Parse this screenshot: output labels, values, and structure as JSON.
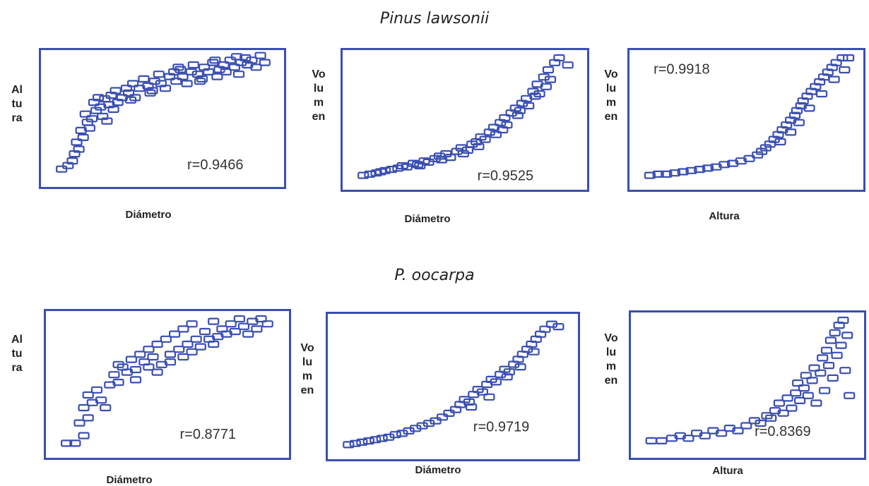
{
  "groups": [
    {
      "title": "Pinus lawsonii",
      "charts": [
        {
          "type": "scatter",
          "xlabel": "Diámetro",
          "ylabel": "Altura",
          "r_label": "r=0.9466"
        },
        {
          "type": "scatter",
          "xlabel": "Diámetro",
          "ylabel": "Volumen",
          "r_label": "r=0.9525"
        },
        {
          "type": "scatter",
          "xlabel": "Altura",
          "ylabel": "Volumen",
          "r_label": "r=0.9918"
        }
      ]
    },
    {
      "title": "P. oocarpa",
      "charts": [
        {
          "type": "scatter",
          "xlabel": "Diámetro",
          "ylabel": "Altura",
          "r_label": "r=0.8771"
        },
        {
          "type": "scatter",
          "xlabel": "Diámetro",
          "ylabel": "Volumen",
          "r_label": "r=0.9719"
        },
        {
          "type": "scatter",
          "xlabel": "Altura",
          "ylabel": "Volumen",
          "r_label": "r=0.8369"
        }
      ]
    }
  ],
  "chart_data": [
    {
      "type": "scatter",
      "title": "Pinus lawsonii",
      "xlabel": "Diámetro",
      "ylabel": "Altura",
      "annotation": "r=0.9466",
      "marker": "open-rectangle",
      "marker_color": "#3a4fb0",
      "points": [
        [
          0.02,
          0.05
        ],
        [
          0.05,
          0.08
        ],
        [
          0.07,
          0.12
        ],
        [
          0.08,
          0.18
        ],
        [
          0.1,
          0.22
        ],
        [
          0.09,
          0.28
        ],
        [
          0.12,
          0.32
        ],
        [
          0.11,
          0.38
        ],
        [
          0.14,
          0.45
        ],
        [
          0.13,
          0.52
        ],
        [
          0.16,
          0.48
        ],
        [
          0.18,
          0.55
        ],
        [
          0.17,
          0.62
        ],
        [
          0.2,
          0.58
        ],
        [
          0.22,
          0.65
        ],
        [
          0.21,
          0.5
        ],
        [
          0.24,
          0.6
        ],
        [
          0.25,
          0.68
        ],
        [
          0.27,
          0.72
        ],
        [
          0.28,
          0.62
        ],
        [
          0.3,
          0.66
        ],
        [
          0.32,
          0.74
        ],
        [
          0.33,
          0.7
        ],
        [
          0.35,
          0.78
        ],
        [
          0.36,
          0.66
        ],
        [
          0.38,
          0.74
        ],
        [
          0.4,
          0.82
        ],
        [
          0.42,
          0.76
        ],
        [
          0.43,
          0.7
        ],
        [
          0.45,
          0.8
        ],
        [
          0.47,
          0.86
        ],
        [
          0.48,
          0.78
        ],
        [
          0.5,
          0.74
        ],
        [
          0.52,
          0.84
        ],
        [
          0.54,
          0.88
        ],
        [
          0.55,
          0.8
        ],
        [
          0.57,
          0.9
        ],
        [
          0.58,
          0.84
        ],
        [
          0.6,
          0.78
        ],
        [
          0.62,
          0.88
        ],
        [
          0.63,
          0.94
        ],
        [
          0.65,
          0.86
        ],
        [
          0.67,
          0.82
        ],
        [
          0.68,
          0.92
        ],
        [
          0.7,
          0.88
        ],
        [
          0.72,
          0.96
        ],
        [
          0.74,
          0.84
        ],
        [
          0.75,
          0.9
        ],
        [
          0.77,
          0.94
        ],
        [
          0.78,
          0.88
        ],
        [
          0.8,
          0.98
        ],
        [
          0.82,
          0.92
        ],
        [
          0.84,
          0.86
        ],
        [
          0.85,
          0.96
        ],
        [
          0.87,
          1.0
        ],
        [
          0.88,
          0.94
        ],
        [
          0.9,
          0.98
        ],
        [
          0.92,
          0.92
        ],
        [
          0.94,
          1.02
        ],
        [
          0.96,
          0.96
        ],
        [
          0.23,
          0.46
        ],
        [
          0.15,
          0.4
        ],
        [
          0.19,
          0.66
        ],
        [
          0.26,
          0.56
        ],
        [
          0.34,
          0.64
        ],
        [
          0.44,
          0.72
        ],
        [
          0.56,
          0.92
        ],
        [
          0.66,
          0.8
        ],
        [
          0.73,
          0.98
        ],
        [
          0.83,
          1.01
        ]
      ]
    },
    {
      "type": "scatter",
      "title": "Pinus lawsonii",
      "xlabel": "Diámetro",
      "ylabel": "Volumen",
      "annotation": "r=0.9525",
      "marker": "open-rectangle",
      "marker_color": "#3a4fb0",
      "points": [
        [
          0.02,
          0.02
        ],
        [
          0.05,
          0.03
        ],
        [
          0.08,
          0.04
        ],
        [
          0.1,
          0.05
        ],
        [
          0.12,
          0.06
        ],
        [
          0.15,
          0.07
        ],
        [
          0.18,
          0.08
        ],
        [
          0.2,
          0.1
        ],
        [
          0.22,
          0.09
        ],
        [
          0.25,
          0.12
        ],
        [
          0.27,
          0.11
        ],
        [
          0.3,
          0.14
        ],
        [
          0.32,
          0.13
        ],
        [
          0.35,
          0.16
        ],
        [
          0.37,
          0.18
        ],
        [
          0.4,
          0.2
        ],
        [
          0.42,
          0.17
        ],
        [
          0.45,
          0.22
        ],
        [
          0.47,
          0.25
        ],
        [
          0.5,
          0.23
        ],
        [
          0.52,
          0.28
        ],
        [
          0.54,
          0.3
        ],
        [
          0.56,
          0.34
        ],
        [
          0.58,
          0.32
        ],
        [
          0.6,
          0.38
        ],
        [
          0.62,
          0.42
        ],
        [
          0.63,
          0.36
        ],
        [
          0.65,
          0.46
        ],
        [
          0.67,
          0.5
        ],
        [
          0.68,
          0.44
        ],
        [
          0.7,
          0.54
        ],
        [
          0.72,
          0.58
        ],
        [
          0.73,
          0.52
        ],
        [
          0.75,
          0.62
        ],
        [
          0.77,
          0.66
        ],
        [
          0.78,
          0.6
        ],
        [
          0.8,
          0.72
        ],
        [
          0.82,
          0.78
        ],
        [
          0.83,
          0.7
        ],
        [
          0.85,
          0.84
        ],
        [
          0.87,
          0.9
        ],
        [
          0.88,
          0.82
        ],
        [
          0.9,
          0.96
        ],
        [
          0.92,
          1.0
        ],
        [
          0.96,
          0.94
        ],
        [
          0.55,
          0.26
        ],
        [
          0.48,
          0.2
        ],
        [
          0.38,
          0.15
        ],
        [
          0.28,
          0.1
        ],
        [
          0.66,
          0.4
        ],
        [
          0.74,
          0.56
        ],
        [
          0.81,
          0.68
        ],
        [
          0.86,
          0.76
        ]
      ]
    },
    {
      "type": "scatter",
      "title": "Pinus lawsonii",
      "xlabel": "Altura",
      "ylabel": "Volumen",
      "annotation": "r=0.9918",
      "marker": "open-rectangle",
      "marker_color": "#3a4fb0",
      "points": [
        [
          0.02,
          0.02
        ],
        [
          0.06,
          0.03
        ],
        [
          0.1,
          0.03
        ],
        [
          0.14,
          0.04
        ],
        [
          0.18,
          0.05
        ],
        [
          0.22,
          0.06
        ],
        [
          0.26,
          0.07
        ],
        [
          0.3,
          0.08
        ],
        [
          0.34,
          0.09
        ],
        [
          0.38,
          0.11
        ],
        [
          0.42,
          0.12
        ],
        [
          0.46,
          0.14
        ],
        [
          0.5,
          0.16
        ],
        [
          0.54,
          0.19
        ],
        [
          0.56,
          0.22
        ],
        [
          0.58,
          0.25
        ],
        [
          0.6,
          0.28
        ],
        [
          0.62,
          0.32
        ],
        [
          0.64,
          0.36
        ],
        [
          0.66,
          0.4
        ],
        [
          0.68,
          0.44
        ],
        [
          0.7,
          0.48
        ],
        [
          0.72,
          0.52
        ],
        [
          0.73,
          0.56
        ],
        [
          0.75,
          0.6
        ],
        [
          0.76,
          0.64
        ],
        [
          0.78,
          0.68
        ],
        [
          0.8,
          0.72
        ],
        [
          0.82,
          0.76
        ],
        [
          0.84,
          0.8
        ],
        [
          0.86,
          0.84
        ],
        [
          0.88,
          0.88
        ],
        [
          0.9,
          0.92
        ],
        [
          0.92,
          0.96
        ],
        [
          0.95,
          1.0
        ],
        [
          0.98,
          1.0
        ],
        [
          0.65,
          0.3
        ],
        [
          0.7,
          0.38
        ],
        [
          0.74,
          0.46
        ],
        [
          0.79,
          0.58
        ],
        [
          0.85,
          0.7
        ],
        [
          0.91,
          0.82
        ],
        [
          0.96,
          0.9
        ]
      ]
    },
    {
      "type": "scatter",
      "title": "P. oocarpa",
      "xlabel": "Diámetro",
      "ylabel": "Altura",
      "annotation": "r=0.8771",
      "marker": "open-rectangle",
      "marker_color": "#3a4fb0",
      "points": [
        [
          0.02,
          0.02
        ],
        [
          0.06,
          0.02
        ],
        [
          0.1,
          0.08
        ],
        [
          0.08,
          0.18
        ],
        [
          0.12,
          0.22
        ],
        [
          0.1,
          0.3
        ],
        [
          0.14,
          0.34
        ],
        [
          0.12,
          0.4
        ],
        [
          0.16,
          0.44
        ],
        [
          0.18,
          0.36
        ],
        [
          0.2,
          0.3
        ],
        [
          0.22,
          0.48
        ],
        [
          0.24,
          0.56
        ],
        [
          0.26,
          0.5
        ],
        [
          0.28,
          0.62
        ],
        [
          0.3,
          0.58
        ],
        [
          0.32,
          0.68
        ],
        [
          0.34,
          0.6
        ],
        [
          0.36,
          0.72
        ],
        [
          0.38,
          0.66
        ],
        [
          0.4,
          0.76
        ],
        [
          0.42,
          0.7
        ],
        [
          0.44,
          0.8
        ],
        [
          0.46,
          0.64
        ],
        [
          0.48,
          0.84
        ],
        [
          0.5,
          0.72
        ],
        [
          0.52,
          0.88
        ],
        [
          0.54,
          0.76
        ],
        [
          0.56,
          0.92
        ],
        [
          0.58,
          0.8
        ],
        [
          0.6,
          0.96
        ],
        [
          0.62,
          0.84
        ],
        [
          0.64,
          0.78
        ],
        [
          0.66,
          0.9
        ],
        [
          0.68,
          0.84
        ],
        [
          0.7,
          0.98
        ],
        [
          0.72,
          0.86
        ],
        [
          0.74,
          0.92
        ],
        [
          0.76,
          0.88
        ],
        [
          0.78,
          0.96
        ],
        [
          0.8,
          0.9
        ],
        [
          0.82,
          1.0
        ],
        [
          0.84,
          0.94
        ],
        [
          0.86,
          0.88
        ],
        [
          0.88,
          0.98
        ],
        [
          0.9,
          0.92
        ],
        [
          0.92,
          1.0
        ],
        [
          0.95,
          0.96
        ],
        [
          0.34,
          0.52
        ],
        [
          0.44,
          0.58
        ],
        [
          0.5,
          0.66
        ],
        [
          0.26,
          0.64
        ],
        [
          0.4,
          0.62
        ],
        [
          0.56,
          0.7
        ],
        [
          0.7,
          0.8
        ],
        [
          0.6,
          0.74
        ]
      ]
    },
    {
      "type": "scatter",
      "title": "P. oocarpa",
      "xlabel": "Diámetro",
      "ylabel": "Volumen",
      "annotation": "r=0.9719",
      "marker": "open-rectangle",
      "marker_color": "#3a4fb0",
      "points": [
        [
          0.02,
          0.02
        ],
        [
          0.05,
          0.03
        ],
        [
          0.08,
          0.04
        ],
        [
          0.11,
          0.05
        ],
        [
          0.14,
          0.06
        ],
        [
          0.17,
          0.07
        ],
        [
          0.2,
          0.08
        ],
        [
          0.23,
          0.1
        ],
        [
          0.26,
          0.11
        ],
        [
          0.29,
          0.13
        ],
        [
          0.32,
          0.15
        ],
        [
          0.35,
          0.17
        ],
        [
          0.38,
          0.19
        ],
        [
          0.41,
          0.21
        ],
        [
          0.44,
          0.24
        ],
        [
          0.47,
          0.27
        ],
        [
          0.5,
          0.3
        ],
        [
          0.52,
          0.34
        ],
        [
          0.54,
          0.38
        ],
        [
          0.56,
          0.36
        ],
        [
          0.58,
          0.42
        ],
        [
          0.6,
          0.46
        ],
        [
          0.62,
          0.44
        ],
        [
          0.64,
          0.5
        ],
        [
          0.66,
          0.54
        ],
        [
          0.68,
          0.52
        ],
        [
          0.7,
          0.58
        ],
        [
          0.72,
          0.62
        ],
        [
          0.74,
          0.6
        ],
        [
          0.76,
          0.66
        ],
        [
          0.78,
          0.7
        ],
        [
          0.8,
          0.74
        ],
        [
          0.82,
          0.78
        ],
        [
          0.84,
          0.82
        ],
        [
          0.86,
          0.86
        ],
        [
          0.88,
          0.9
        ],
        [
          0.9,
          0.94
        ],
        [
          0.93,
          0.98
        ],
        [
          0.96,
          0.96
        ],
        [
          0.57,
          0.32
        ],
        [
          0.65,
          0.4
        ],
        [
          0.73,
          0.56
        ],
        [
          0.79,
          0.64
        ],
        [
          0.85,
          0.76
        ]
      ]
    },
    {
      "type": "scatter",
      "title": "P. oocarpa",
      "xlabel": "Altura",
      "ylabel": "Volumen",
      "annotation": "r=0.8369",
      "marker": "open-rectangle",
      "marker_color": "#3a4fb0",
      "points": [
        [
          0.02,
          0.04
        ],
        [
          0.07,
          0.04
        ],
        [
          0.12,
          0.06
        ],
        [
          0.16,
          0.08
        ],
        [
          0.2,
          0.06
        ],
        [
          0.24,
          0.1
        ],
        [
          0.28,
          0.08
        ],
        [
          0.32,
          0.12
        ],
        [
          0.36,
          0.1
        ],
        [
          0.4,
          0.14
        ],
        [
          0.44,
          0.12
        ],
        [
          0.48,
          0.16
        ],
        [
          0.52,
          0.2
        ],
        [
          0.55,
          0.18
        ],
        [
          0.58,
          0.24
        ],
        [
          0.6,
          0.22
        ],
        [
          0.62,
          0.28
        ],
        [
          0.64,
          0.34
        ],
        [
          0.66,
          0.26
        ],
        [
          0.68,
          0.38
        ],
        [
          0.7,
          0.3
        ],
        [
          0.72,
          0.42
        ],
        [
          0.73,
          0.5
        ],
        [
          0.74,
          0.36
        ],
        [
          0.76,
          0.46
        ],
        [
          0.77,
          0.56
        ],
        [
          0.78,
          0.4
        ],
        [
          0.8,
          0.52
        ],
        [
          0.81,
          0.62
        ],
        [
          0.82,
          0.34
        ],
        [
          0.84,
          0.58
        ],
        [
          0.85,
          0.7
        ],
        [
          0.86,
          0.44
        ],
        [
          0.87,
          0.76
        ],
        [
          0.88,
          0.64
        ],
        [
          0.89,
          0.84
        ],
        [
          0.9,
          0.54
        ],
        [
          0.91,
          0.9
        ],
        [
          0.92,
          0.72
        ],
        [
          0.93,
          0.96
        ],
        [
          0.94,
          0.8
        ],
        [
          0.95,
          1.0
        ],
        [
          0.96,
          0.6
        ],
        [
          0.97,
          0.88
        ],
        [
          0.98,
          0.4
        ]
      ]
    }
  ]
}
